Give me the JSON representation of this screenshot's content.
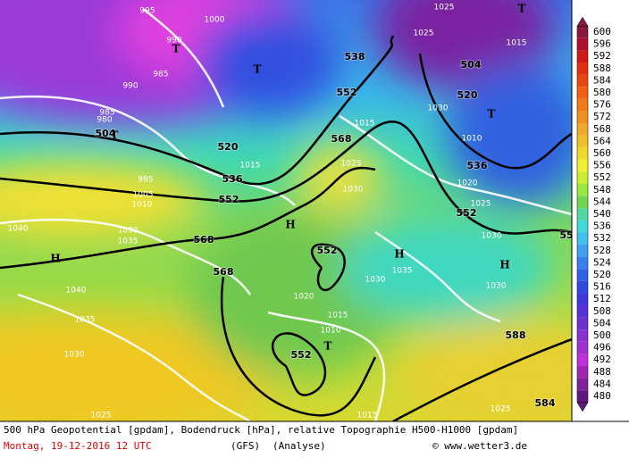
{
  "map": {
    "labels": [
      "538",
      "552",
      "504",
      "504",
      "520",
      "520",
      "536",
      "536",
      "552",
      "552",
      "568",
      "568",
      "568",
      "552",
      "552",
      "588",
      "584",
      "55",
      "995",
      "1000",
      "990",
      "985",
      "990",
      "985",
      "980",
      "995",
      "1005",
      "1010",
      "1040",
      "1030",
      "1035",
      "1040",
      "1035",
      "1030",
      "1025",
      "1015",
      "1015",
      "1025",
      "1030",
      "1020",
      "1025",
      "1030",
      "1035",
      "1030",
      "1030",
      "1020",
      "1015",
      "1010",
      "1015",
      "1025",
      "1025",
      "1025",
      "1015",
      "1030",
      "1010",
      "H",
      "H",
      "H",
      "H",
      "T",
      "T",
      "T",
      "T",
      "T",
      "T"
    ]
  },
  "legend": {
    "values": [
      600,
      596,
      592,
      588,
      584,
      580,
      576,
      572,
      568,
      564,
      560,
      556,
      552,
      548,
      544,
      540,
      536,
      532,
      528,
      524,
      520,
      516,
      512,
      508,
      504,
      500,
      496,
      492,
      488,
      484,
      480
    ]
  },
  "footer": {
    "line1": "500 hPa Geopotential [gpdam], Bodendruck [hPa], relative Topographie H500-H1000 [gpdam]",
    "date": "Montag, 19-12-2016  12 UTC",
    "model": "(GFS)",
    "run": "(Analyse)",
    "credit": "© www.wetter3.de"
  }
}
